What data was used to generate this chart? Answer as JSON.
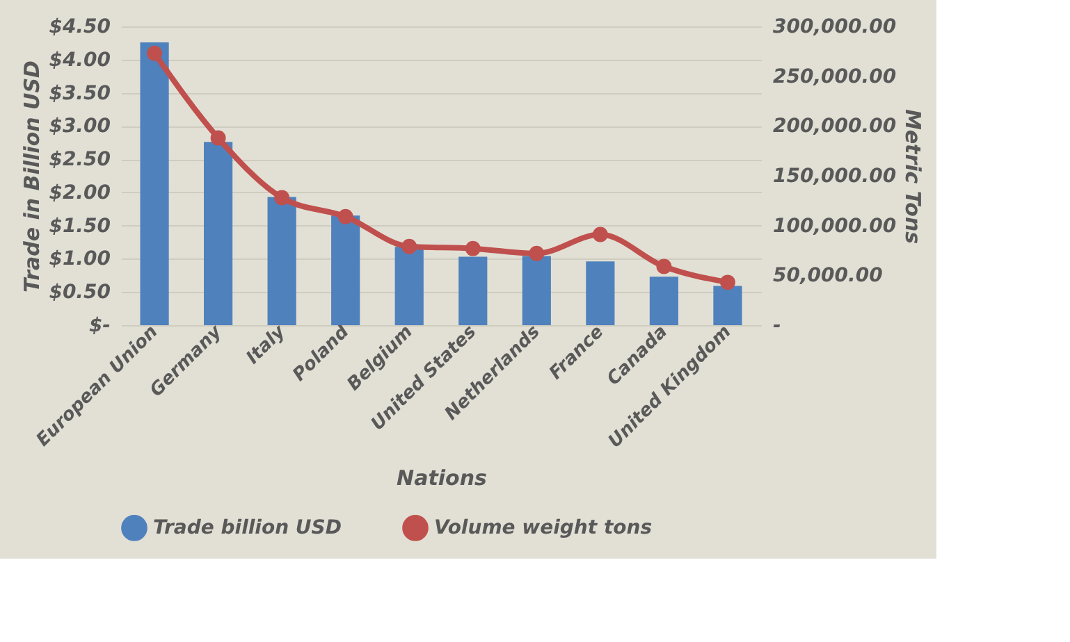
{
  "chart_data": {
    "type": "bar",
    "categories": [
      "European Union",
      "Germany",
      "Italy",
      "Poland",
      "Belgium",
      "United States",
      "Netherlands",
      "France",
      "Canada",
      "United Kingdom"
    ],
    "series": [
      {
        "name": "Trade billion USD",
        "color": "#4f81bd",
        "values": [
          4.26,
          2.76,
          1.93,
          1.65,
          1.18,
          1.03,
          1.04,
          0.96,
          0.73,
          0.59
        ]
      },
      {
        "name": "Volume weight tons",
        "type": "line",
        "axis": "y2",
        "color": "#c0504d",
        "values": [
          273000,
          188000,
          128000,
          109000,
          79000,
          77000,
          72000,
          91000,
          59000,
          43000
        ]
      }
    ],
    "xlabel": "Nations",
    "ylabel": "Trade in Billion USD",
    "y2label": "Metric Tons",
    "ylim": [
      0,
      4.5
    ],
    "yticks": [
      {
        "value": 0,
        "label": "$-"
      },
      {
        "value": 0.5,
        "label": "$0.50"
      },
      {
        "value": 1,
        "label": "$1.00"
      },
      {
        "value": 1.5,
        "label": "$1.50"
      },
      {
        "value": 2,
        "label": "$2.00"
      },
      {
        "value": 2.5,
        "label": "$2.50"
      },
      {
        "value": 3,
        "label": "$3.00"
      },
      {
        "value": 3.5,
        "label": "$3.50"
      },
      {
        "value": 4,
        "label": "$4.00"
      },
      {
        "value": 4.5,
        "label": "$4.50"
      }
    ],
    "y2lim": [
      0,
      300000
    ],
    "y2ticks": [
      {
        "value": 0,
        "label": "-"
      },
      {
        "value": 50000,
        "label": "50,000.00"
      },
      {
        "value": 100000,
        "label": "100,000.00"
      },
      {
        "value": 150000,
        "label": "150,000.00"
      },
      {
        "value": 200000,
        "label": "200,000.00"
      },
      {
        "value": 250000,
        "label": "250,000.00"
      },
      {
        "value": 300000,
        "label": "300,000.00"
      }
    ],
    "grid": "y",
    "legend": "bottom",
    "marker": "circle",
    "line_style": "solid"
  }
}
